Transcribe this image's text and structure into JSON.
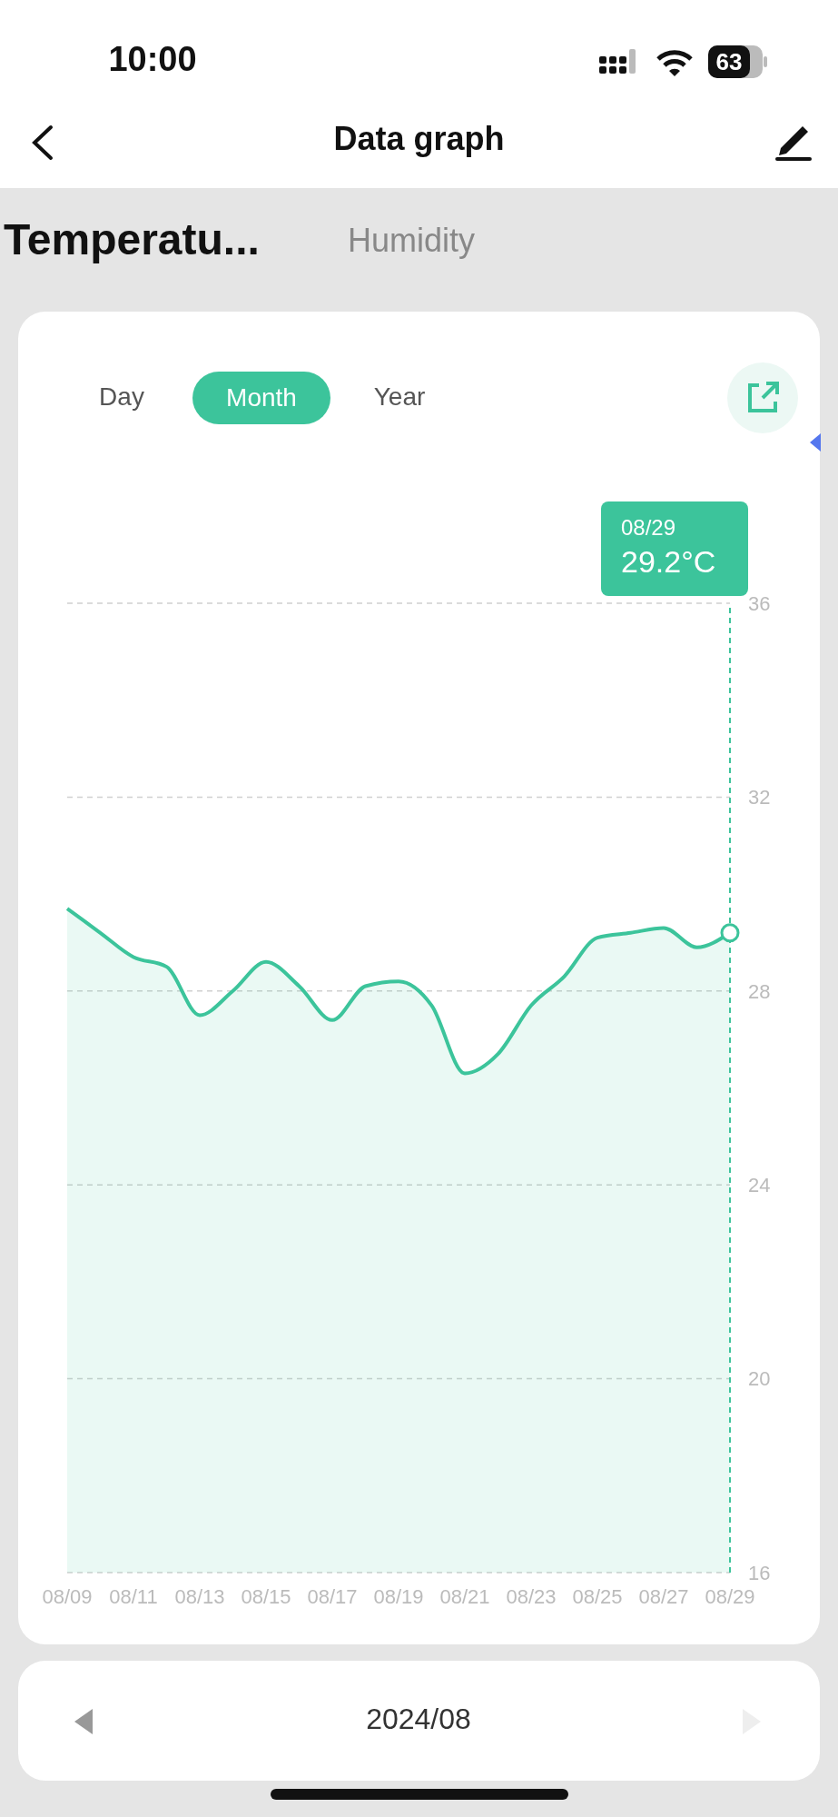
{
  "chart_data": {
    "type": "area",
    "title": "Data graph",
    "categories": [
      "08/09",
      null,
      "08/11",
      null,
      "08/13",
      null,
      "08/15",
      null,
      "08/17",
      null,
      "08/19",
      null,
      "08/21",
      null,
      "08/23",
      null,
      "08/25",
      null,
      "08/27",
      null,
      "08/29"
    ],
    "series": [
      {
        "color": "#3cc49b",
        "values": [
          29.7,
          29.2,
          28.7,
          28.5,
          27.5,
          28.0,
          28.6,
          28.1,
          27.4,
          28.1,
          28.2,
          27.7,
          26.3,
          26.7,
          27.7,
          28.3,
          29.1,
          29.2,
          29.3,
          28.9,
          29.2
        ]
      }
    ],
    "ylim": [
      16,
      36
    ],
    "yticks": [
      16,
      20,
      24,
      28,
      32,
      36
    ],
    "grid": "y",
    "legend": false,
    "marker": "none",
    "line_style": "solid",
    "ref_lines": [
      {
        "axis": "x",
        "value": "08/29",
        "color": "#3cc49b",
        "line_style": "dashed"
      }
    ],
    "annotations": [
      "10:00",
      "63",
      "Temperatu...",
      "Humidity",
      "Day",
      "Month",
      "Year",
      "2024/08",
      "08/29",
      "29.2°C"
    ]
  }
}
